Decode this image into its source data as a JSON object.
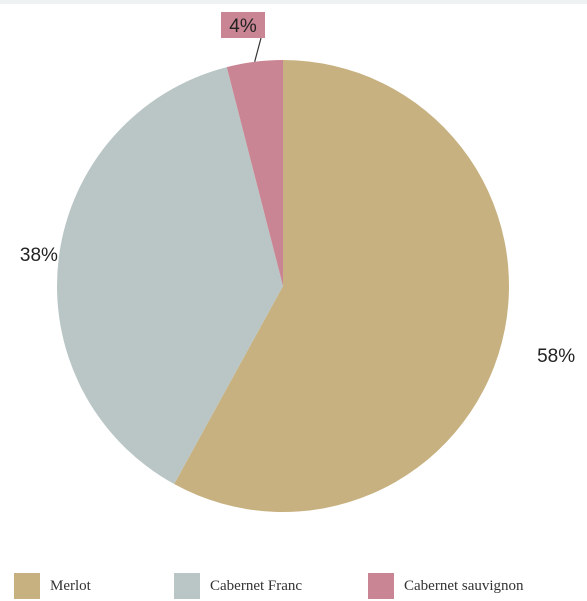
{
  "chart_data": {
    "type": "pie",
    "title": "",
    "slices": [
      {
        "name": "Merlot",
        "value": 58,
        "label": "58%",
        "color": "#c8b180"
      },
      {
        "name": "Cabernet Franc",
        "value": 38,
        "label": "38%",
        "color": "#b9c6c5"
      },
      {
        "name": "Cabernet sauvignon",
        "value": 4,
        "label": "4%",
        "color": "#c98593"
      }
    ],
    "start_angle": "12 o'clock",
    "direction": "clockwise",
    "legend_position": "bottom"
  }
}
